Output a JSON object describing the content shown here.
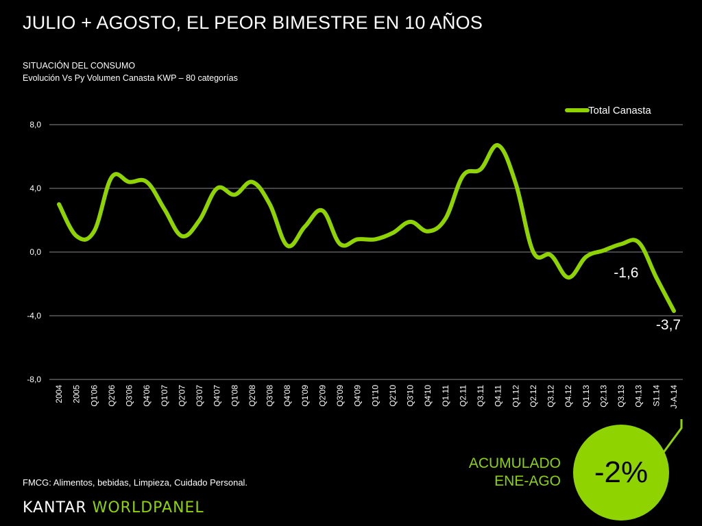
{
  "header": {
    "title": "JULIO + AGOSTO, EL PEOR BIMESTRE EN 10 AÑOS",
    "subtitle_line1": "SITUACIÓN DEL CONSUMO",
    "subtitle_line2": "Evolución Vs Py Volumen Canasta KWP – 80 categorías"
  },
  "footer": {
    "note": "FMCG: Alimentos, bebidas, Limpieza, Cuidado Personal.",
    "logo_part1": "KANTAR ",
    "logo_part2": "WORLDPANEL"
  },
  "summary": {
    "label_line1": "ACUMULADO",
    "label_line2": "ENE-AGO",
    "value": "-2%"
  },
  "colors": {
    "accent": "#8fd400",
    "background": "#000000",
    "grid": "#8a8a8a"
  },
  "chart_data": {
    "type": "line",
    "title": "",
    "xlabel": "",
    "ylabel": "",
    "ylim": [
      -8,
      8
    ],
    "yticks": [
      "8,0",
      "4,0",
      "0,0",
      "-4,0",
      "-8,0"
    ],
    "ytick_values": [
      8,
      4,
      0,
      -4,
      -8
    ],
    "grid": true,
    "legend_position": "top-right",
    "categories": [
      "2004",
      "2005",
      "Q1'06",
      "Q2'06",
      "Q3'06",
      "Q4'06",
      "Q1'07",
      "Q2'07",
      "Q3'07",
      "Q4'07",
      "Q1'08",
      "Q2'08",
      "Q3'08",
      "Q4'08",
      "Q1'09",
      "Q2'09",
      "Q3'09",
      "Q4'09",
      "Q1'10",
      "Q2'10",
      "Q3'10",
      "Q4'10",
      "Q1.11",
      "Q2.11",
      "Q3.11",
      "Q4.11",
      "Q1.12",
      "Q2.12",
      "Q3.12",
      "Q4.12",
      "Q1.13",
      "Q2.13",
      "Q3.13",
      "Q4.13",
      "S1.14",
      "J-A.14"
    ],
    "series": [
      {
        "name": "Total Canasta",
        "values": [
          3.0,
          1.0,
          1.3,
          4.7,
          4.4,
          4.4,
          2.7,
          1.0,
          2.0,
          4.0,
          3.6,
          4.4,
          3.0,
          0.4,
          1.6,
          2.6,
          0.5,
          0.8,
          0.8,
          1.2,
          1.9,
          1.3,
          2.1,
          4.8,
          5.2,
          6.7,
          4.3,
          0.0,
          -0.2,
          -1.6,
          -0.3,
          0.1,
          0.5,
          0.6,
          -1.6,
          -3.7
        ]
      }
    ],
    "annotations": [
      {
        "label": "-1,6",
        "category": "S1.14",
        "value": -1.6
      },
      {
        "label": "-3,7",
        "category": "J-A.14",
        "value": -3.7
      }
    ]
  }
}
